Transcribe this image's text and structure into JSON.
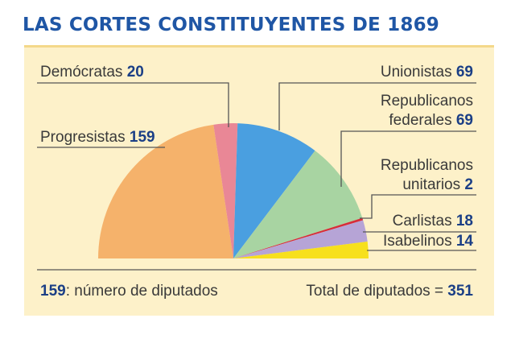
{
  "title": "LAS CORTES CONSTITUYENTES DE 1869",
  "chart_data": {
    "type": "pie",
    "title": "LAS CORTES CONSTITUYENTES DE 1869",
    "shape": "half-pie",
    "series": [
      {
        "name": "Progresistas",
        "value": 159,
        "color": "#f5b26b"
      },
      {
        "name": "Demócratas",
        "value": 20,
        "color": "#e98796"
      },
      {
        "name": "Unionistas",
        "value": 69,
        "color": "#4a9fe0"
      },
      {
        "name": "Republicanos federales",
        "value": 69,
        "color": "#a8d4a2"
      },
      {
        "name": "Republicanos unitarios",
        "value": 2,
        "color": "#d62d3a"
      },
      {
        "name": "Carlistas",
        "value": 18,
        "color": "#b6a4d6"
      },
      {
        "name": "Isabelinos",
        "value": 14,
        "color": "#f7e01d"
      }
    ],
    "labels": [
      {
        "lines": [
          "Demócratas"
        ],
        "value": "20"
      },
      {
        "lines": [
          "Progresistas"
        ],
        "value": "159"
      },
      {
        "lines": [
          "Unionistas"
        ],
        "value": "69"
      },
      {
        "lines": [
          "Republicanos",
          "federales"
        ],
        "value": "69"
      },
      {
        "lines": [
          "Republicanos",
          "unitarios"
        ],
        "value": "2"
      },
      {
        "lines": [
          "Carlistas"
        ],
        "value": "18"
      },
      {
        "lines": [
          "Isabelinos"
        ],
        "value": "14"
      }
    ],
    "note_number": "159",
    "note_text": ": número de diputados",
    "total_text": "Total de diputados = ",
    "total_value": "351"
  }
}
